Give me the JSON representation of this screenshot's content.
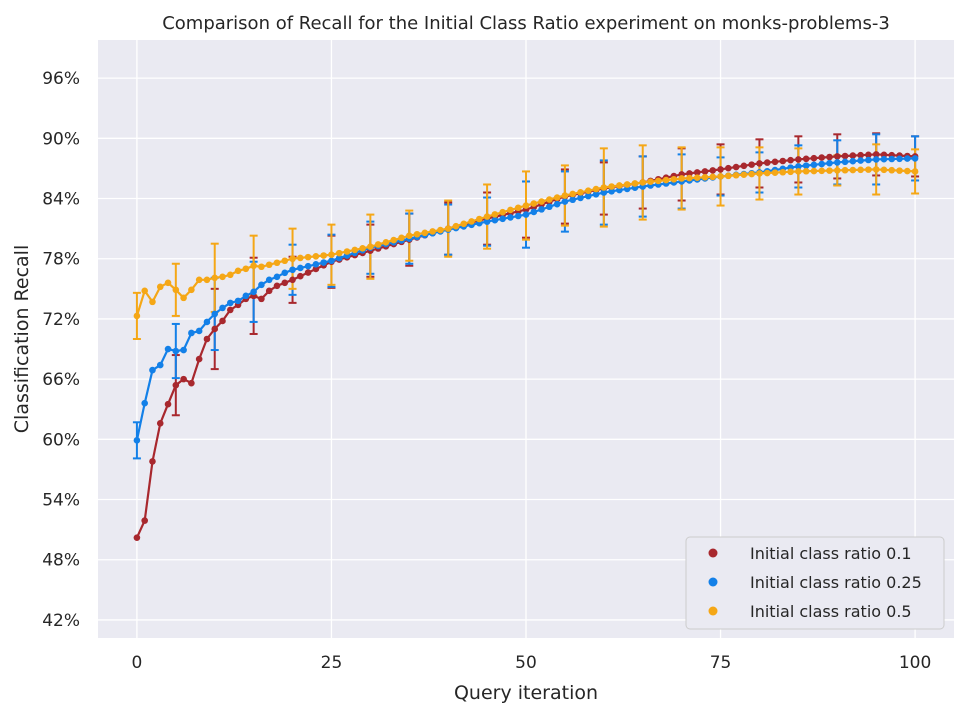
{
  "chart_data": {
    "type": "line",
    "title": "Comparison of Recall for the Initial Class Ratio experiment on monks-problems-3",
    "xlabel": "Query iteration",
    "ylabel": "Classification Recall",
    "xlim": [
      -5,
      105
    ],
    "ylim": [
      40.2,
      99.8
    ],
    "xticks": [
      0,
      25,
      50,
      75,
      100
    ],
    "xtick_labels": [
      "0",
      "25",
      "50",
      "75",
      "100"
    ],
    "yticks": [
      42,
      48,
      54,
      60,
      66,
      72,
      78,
      84,
      90,
      96
    ],
    "ytick_labels": [
      "42%",
      "48%",
      "54%",
      "60%",
      "66%",
      "72%",
      "78%",
      "84%",
      "90%",
      "96%"
    ],
    "grid": true,
    "legend_position": "lower-right",
    "error_bar_x": [
      0,
      5,
      10,
      15,
      20,
      25,
      30,
      35,
      40,
      45,
      50,
      55,
      60,
      65,
      70,
      75,
      80,
      85,
      90,
      95,
      100
    ],
    "series": [
      {
        "name": "Initial class ratio 0.1",
        "color": "#a8282e",
        "anchors": {
          "x": [
            0,
            1,
            2,
            3,
            4,
            5,
            6,
            7,
            8,
            9,
            10,
            11,
            12,
            13,
            14,
            15,
            16,
            17,
            18,
            20,
            25,
            30,
            35,
            40,
            45,
            50,
            55,
            60,
            65,
            70,
            75,
            80,
            85,
            90,
            95,
            100
          ],
          "y": [
            50.2,
            51.9,
            57.8,
            61.6,
            63.5,
            65.4,
            66.0,
            65.6,
            68.0,
            70.0,
            71.0,
            71.8,
            72.9,
            73.4,
            74.0,
            74.3,
            74.0,
            74.8,
            75.3,
            75.9,
            77.7,
            78.8,
            79.9,
            81.0,
            82.0,
            82.9,
            84.2,
            85.0,
            85.6,
            86.4,
            86.9,
            87.5,
            87.9,
            88.2,
            88.4,
            88.2
          ]
        },
        "error_half_width": [
          0.0,
          3.0,
          4.0,
          3.8,
          2.3,
          2.6,
          2.6,
          2.6,
          2.6,
          2.6,
          2.8,
          2.7,
          2.6,
          2.6,
          2.6,
          2.5,
          2.4,
          2.3,
          2.2,
          2.1,
          2.0
        ]
      },
      {
        "name": "Initial class ratio 0.25",
        "color": "#1380e8",
        "anchors": {
          "x": [
            0,
            1,
            2,
            3,
            4,
            5,
            6,
            7,
            8,
            9,
            10,
            11,
            12,
            13,
            14,
            15,
            16,
            17,
            18,
            19,
            20,
            25,
            30,
            35,
            40,
            45,
            50,
            55,
            60,
            65,
            70,
            75,
            80,
            85,
            90,
            95,
            100
          ],
          "y": [
            59.9,
            63.6,
            66.9,
            67.4,
            69.0,
            68.8,
            68.9,
            70.6,
            70.8,
            71.7,
            72.5,
            73.1,
            73.6,
            73.8,
            74.3,
            74.7,
            75.4,
            75.9,
            76.2,
            76.6,
            76.9,
            77.8,
            79.1,
            80.0,
            80.9,
            81.7,
            82.4,
            83.7,
            84.6,
            85.2,
            85.7,
            86.2,
            86.6,
            87.2,
            87.6,
            87.9,
            88.0
          ]
        },
        "error_half_width": [
          1.8,
          2.7,
          3.6,
          3.0,
          2.5,
          2.6,
          2.6,
          2.5,
          2.5,
          2.4,
          3.3,
          3.0,
          3.2,
          3.0,
          2.7,
          1.9,
          2.0,
          2.1,
          2.2,
          2.5,
          2.2
        ]
      },
      {
        "name": "Initial class ratio 0.5",
        "color": "#f5a716",
        "anchors": {
          "x": [
            0,
            1,
            2,
            3,
            4,
            5,
            6,
            7,
            8,
            9,
            10,
            11,
            12,
            13,
            14,
            15,
            16,
            17,
            18,
            19,
            20,
            25,
            30,
            35,
            40,
            45,
            50,
            55,
            60,
            65,
            70,
            75,
            80,
            85,
            90,
            95,
            100
          ],
          "y": [
            72.3,
            74.8,
            73.7,
            75.2,
            75.6,
            74.9,
            74.1,
            74.9,
            75.9,
            75.9,
            76.1,
            76.2,
            76.4,
            76.8,
            77.0,
            77.3,
            77.2,
            77.4,
            77.6,
            77.8,
            78.0,
            78.4,
            79.2,
            80.3,
            81.0,
            82.2,
            83.3,
            84.3,
            85.1,
            85.6,
            86.0,
            86.2,
            86.5,
            86.7,
            86.8,
            86.9,
            86.7
          ]
        },
        "error_half_width": [
          2.3,
          2.6,
          3.4,
          3.0,
          3.0,
          3.0,
          3.2,
          2.5,
          2.8,
          3.2,
          3.4,
          3.0,
          3.9,
          3.7,
          3.1,
          2.9,
          2.6,
          2.3,
          1.5,
          2.5,
          2.2
        ]
      }
    ]
  }
}
